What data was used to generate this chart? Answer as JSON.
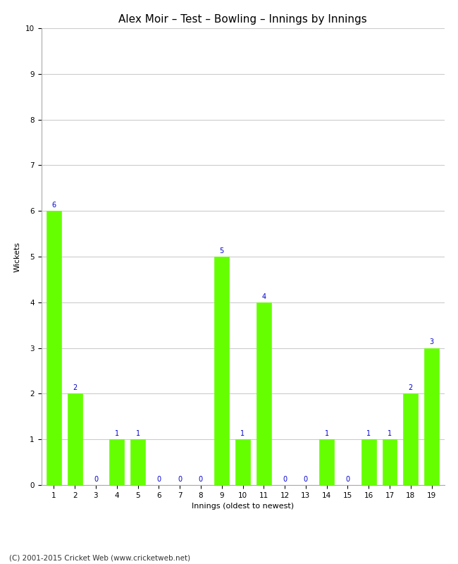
{
  "title": "Alex Moir – Test – Bowling – Innings by Innings",
  "xlabel": "Innings (oldest to newest)",
  "ylabel": "Wickets",
  "footer": "(C) 2001-2015 Cricket Web (www.cricketweb.net)",
  "categories": [
    "1",
    "2",
    "3",
    "4",
    "5",
    "6",
    "7",
    "8",
    "9",
    "10",
    "11",
    "12",
    "13",
    "14",
    "15",
    "16",
    "17",
    "18",
    "19"
  ],
  "values": [
    6,
    2,
    0,
    1,
    1,
    0,
    0,
    0,
    5,
    1,
    4,
    0,
    0,
    1,
    0,
    1,
    1,
    2,
    3
  ],
  "bar_color": "#66ff00",
  "bar_edge_color": "#66ff00",
  "ylim": [
    0,
    10
  ],
  "yticks": [
    0,
    1,
    2,
    3,
    4,
    5,
    6,
    7,
    8,
    9,
    10
  ],
  "label_color": "#0000cc",
  "label_fontsize": 7,
  "title_fontsize": 11,
  "axis_label_fontsize": 8,
  "tick_fontsize": 7.5,
  "footer_fontsize": 7.5,
  "background_color": "#ffffff",
  "grid_color": "#cccccc"
}
